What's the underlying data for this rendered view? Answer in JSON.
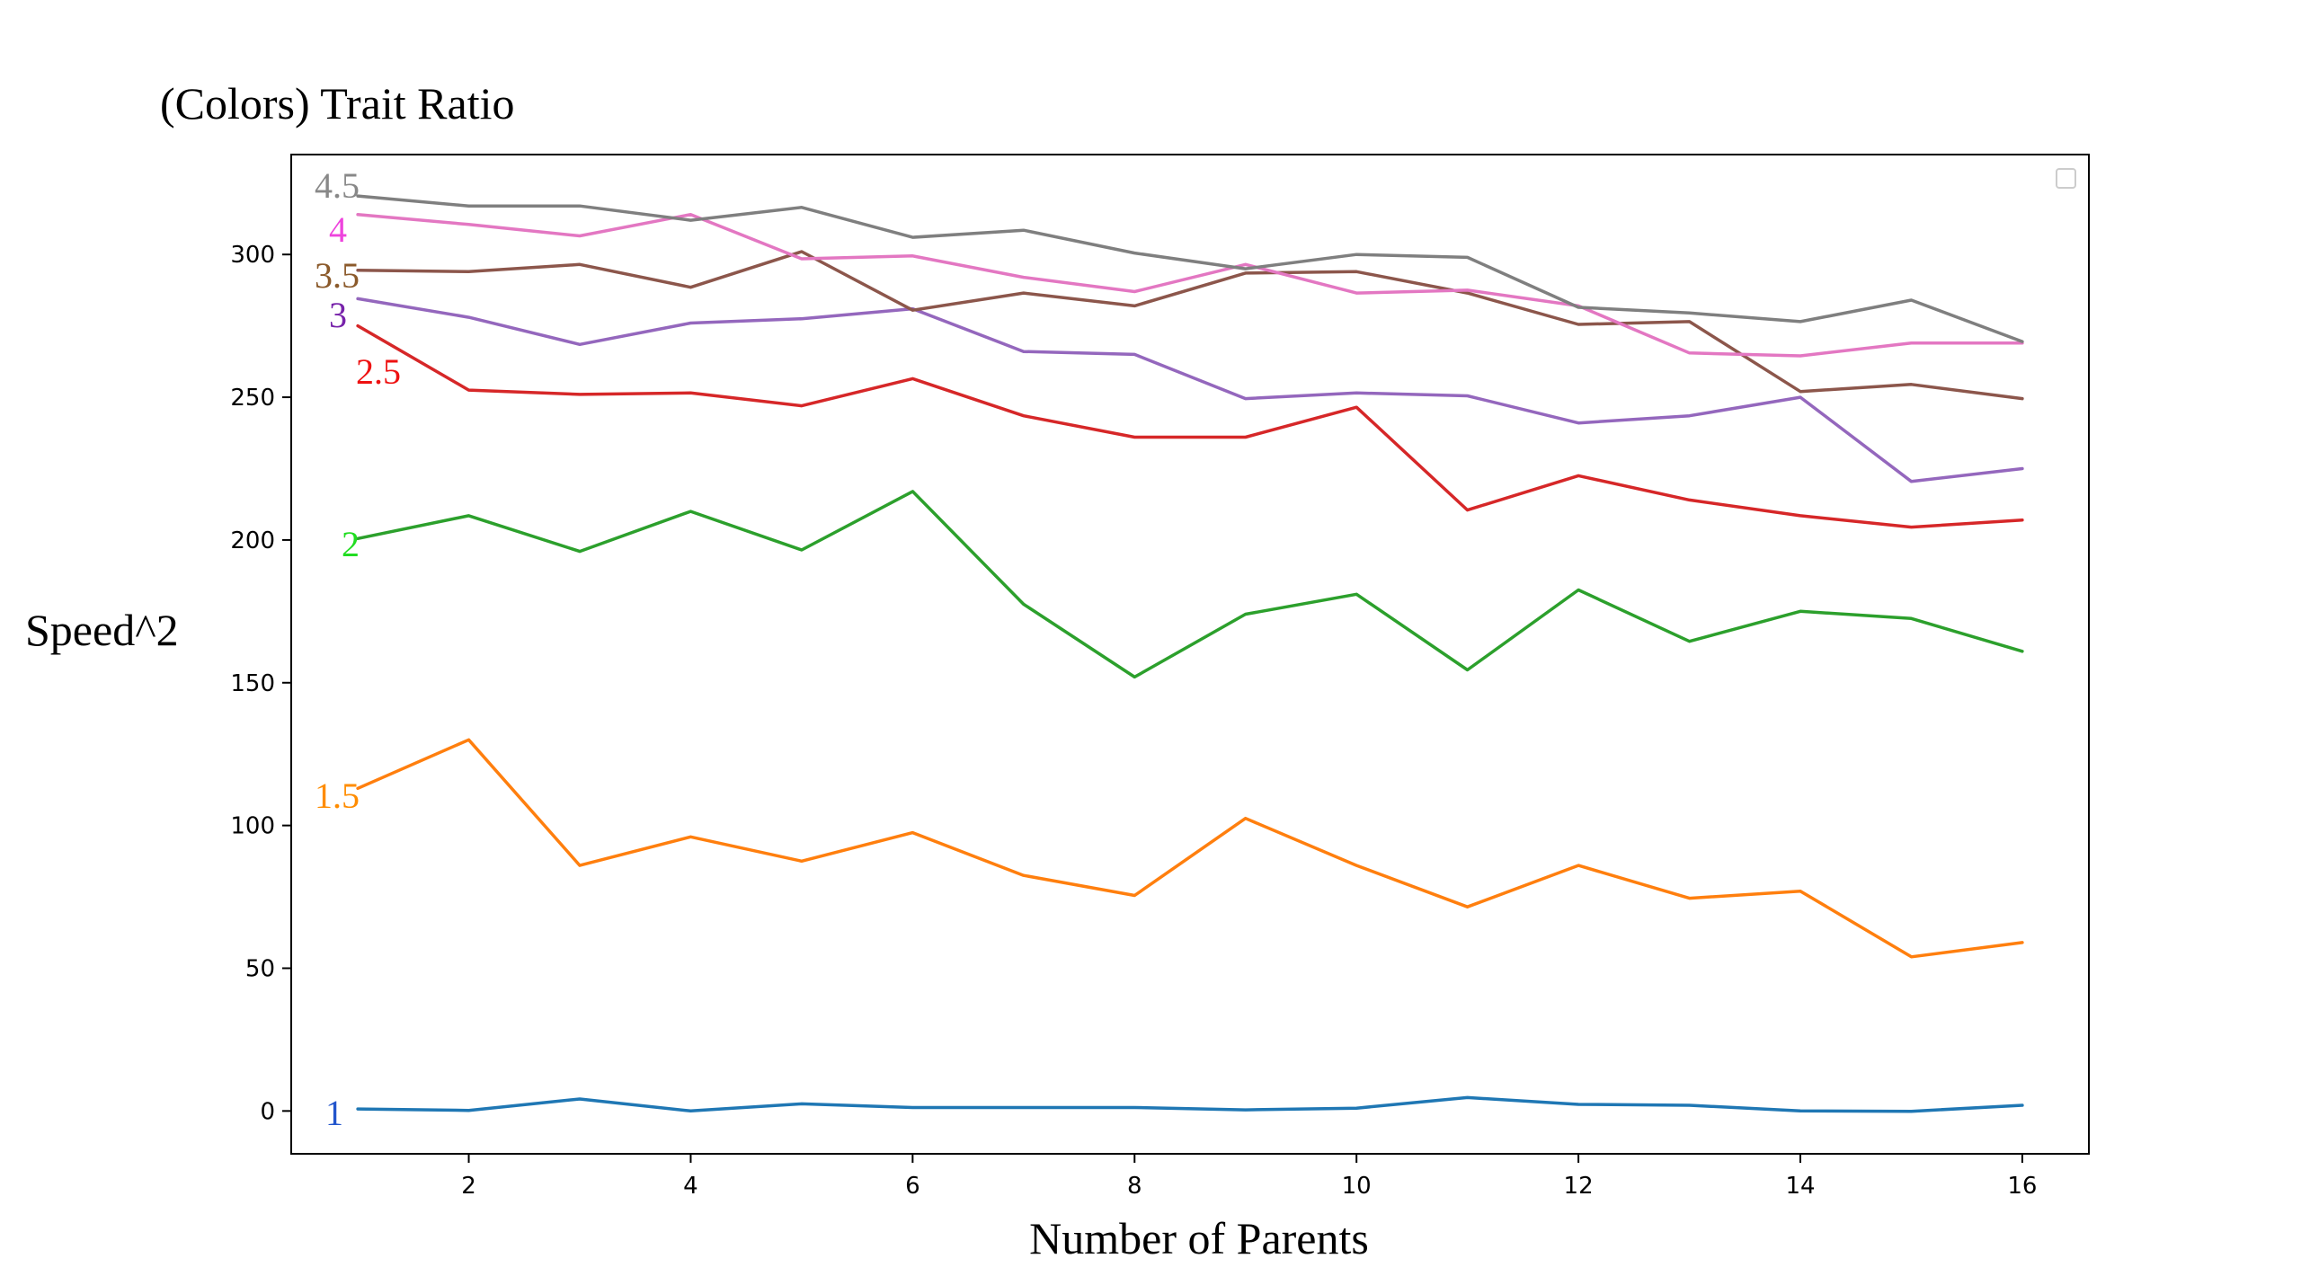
{
  "chart_data": {
    "type": "line",
    "title": "(Colors) Trait Ratio",
    "xlabel": "Number of Parents",
    "ylabel": "Speed^2",
    "xlim": [
      0.4,
      16.6
    ],
    "ylim": [
      -15,
      335
    ],
    "xticks": [
      2,
      4,
      6,
      8,
      10,
      12,
      14,
      16
    ],
    "yticks": [
      0,
      50,
      100,
      150,
      200,
      250,
      300
    ],
    "grid": false,
    "legend": "top-right (empty)",
    "x": [
      1,
      2,
      3,
      4,
      5,
      6,
      7,
      8,
      9,
      10,
      11,
      12,
      13,
      14,
      15,
      16
    ],
    "series": [
      {
        "name": "1",
        "color": "#1f77b4",
        "label_color": "#2255cc",
        "values": [
          0.7,
          0.2,
          4.2,
          0.0,
          2.5,
          1.2,
          1.2,
          1.2,
          0.4,
          1.0,
          4.7,
          2.3,
          2.0,
          0.0,
          -0.1,
          2.0
        ]
      },
      {
        "name": "1.5",
        "color": "#ff7f0e",
        "label_color": "#ff8c00",
        "values": [
          113,
          130,
          86,
          96,
          87.5,
          97.5,
          82.5,
          75.5,
          102.5,
          86,
          71.5,
          86,
          74.5,
          77,
          54,
          59
        ]
      },
      {
        "name": "2",
        "color": "#2ca02c",
        "label_color": "#22dd22",
        "values": [
          200.5,
          208.5,
          196,
          210,
          196.5,
          217,
          177.5,
          152,
          174,
          181,
          154.5,
          182.5,
          164.5,
          175,
          172.5,
          161
        ]
      },
      {
        "name": "2.5",
        "color": "#d62728",
        "label_color": "#ee1111",
        "values": [
          275,
          252.5,
          251,
          251.5,
          247,
          256.5,
          243.5,
          236,
          236,
          246.5,
          210.5,
          222.5,
          214,
          208.5,
          204.5,
          207
        ]
      },
      {
        "name": "3",
        "color": "#9467bd",
        "label_color": "#7722aa",
        "values": [
          284.5,
          278,
          268.5,
          276,
          277.5,
          281,
          266,
          265,
          249.5,
          251.5,
          250.5,
          241,
          243.5,
          250,
          220.5,
          225
        ]
      },
      {
        "name": "3.5",
        "color": "#8c564b",
        "label_color": "#8b5a2b",
        "values": [
          294.5,
          294,
          296.5,
          288.5,
          301,
          280.5,
          286.5,
          282,
          293.5,
          294,
          286.5,
          275.5,
          276.5,
          252,
          254.5,
          249.5
        ]
      },
      {
        "name": "4",
        "color": "#e377c2",
        "label_color": "#ee44dd",
        "values": [
          314,
          310.5,
          306.5,
          314,
          298.5,
          299.5,
          292,
          287,
          296.5,
          286.5,
          287.5,
          282,
          265.5,
          264.5,
          269,
          269
        ]
      },
      {
        "name": "4.5",
        "color": "#7f7f7f",
        "label_color": "#888888",
        "values": [
          320.5,
          317,
          317,
          312,
          316.5,
          306,
          308.5,
          300.5,
          295,
          300,
          299,
          281.5,
          279.5,
          276.5,
          284,
          269.5
        ]
      }
    ]
  }
}
